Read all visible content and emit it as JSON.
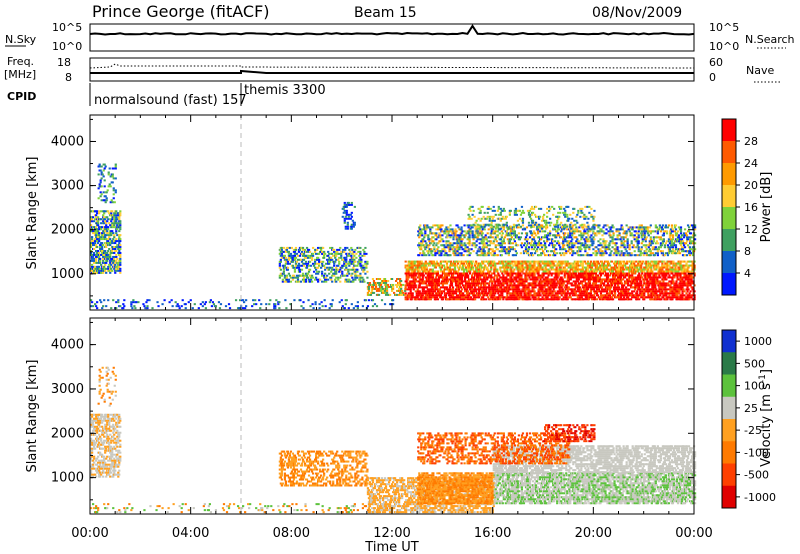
{
  "header": {
    "title": "Prince George (fitACF)",
    "beam": "Beam 15",
    "date": "08/Nov/2009"
  },
  "noise_panel": {
    "left_label": "N.Sky",
    "right_label": "N.Search",
    "left_ticks": [
      "10^5",
      "10^0"
    ],
    "right_ticks": [
      "10^5",
      "10^0"
    ]
  },
  "freq_panel": {
    "left_label": "Freq.",
    "left_unit": "[MHz]",
    "right_label": "Nave",
    "left_ticks": [
      "18",
      "8"
    ],
    "right_ticks": [
      "60",
      "0"
    ]
  },
  "cpid": {
    "label": "CPID",
    "mode1": "normalsound (fast) 157",
    "mode2": "themis 3300",
    "switch_hour": 6
  },
  "chart_data": [
    {
      "type": "heatmap",
      "panel": "power",
      "ylabel": "Slant Range [km]",
      "yticks": [
        "4000",
        "3000",
        "2000",
        "1000"
      ],
      "colorbar_label": "Power [dB]",
      "colorbar_ticks": [
        "28",
        "24",
        "20",
        "16",
        "12",
        "8",
        "4"
      ],
      "colorbar_colors": [
        "#ff0000",
        "#ff5a00",
        "#ff9a00",
        "#ffcc33",
        "#7fd23a",
        "#3fa060",
        "#1060c8",
        "#0018ff"
      ],
      "xlim": [
        0,
        24
      ],
      "ylim": [
        180,
        4600
      ]
    },
    {
      "type": "heatmap",
      "panel": "velocity",
      "ylabel": "Slant Range [km]",
      "yticks": [
        "4000",
        "3000",
        "2000",
        "1000"
      ],
      "colorbar_label": "Velocity [m s^-1]",
      "colorbar_ticks": [
        "1000",
        "500",
        "100",
        "25",
        "-25",
        "-100",
        "-500",
        "-1000"
      ],
      "colorbar_colors": [
        "#1030d0",
        "#2a7a48",
        "#5cc23c",
        "#c8c8c0",
        "#ffa020",
        "#ff7a00",
        "#ff4000",
        "#e00000"
      ],
      "xlim": [
        0,
        24
      ],
      "ylim": [
        180,
        4600
      ]
    }
  ],
  "x_axis": {
    "label": "Time UT",
    "ticks": [
      "00:00",
      "04:00",
      "08:00",
      "12:00",
      "16:00",
      "20:00",
      "00:00"
    ]
  }
}
